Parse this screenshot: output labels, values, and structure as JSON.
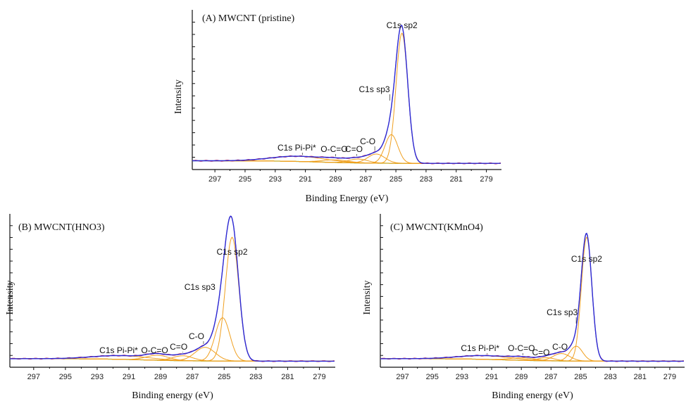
{
  "colors": {
    "envelope": "#2b2bd6",
    "raw": "#cc2244",
    "component": "#f0a020",
    "background": "#22cc22",
    "axis": "#111111"
  },
  "chart_data": [
    {
      "type": "line",
      "title": "(A) MWCNT (pristine)",
      "xlabel": "Binding Energy (eV)",
      "ylabel": "Intensity",
      "xlim": [
        298.5,
        278
      ],
      "x_reversed": true,
      "x_ticks": [
        297,
        295,
        293,
        291,
        289,
        287,
        285,
        283,
        281,
        279
      ],
      "peak_labels": [
        {
          "text": "C1s sp2",
          "x": 284.6
        },
        {
          "text": "C1s sp3",
          "x": 285.4
        },
        {
          "text": "C-O",
          "x": 286.4
        },
        {
          "text": "C=O",
          "x": 287.6
        },
        {
          "text": "O-C=O",
          "x": 289.0
        },
        {
          "text": "C1s Pi-Pi*",
          "x": 291.2
        }
      ],
      "series": [
        {
          "role": "envelope",
          "components": [
            {
              "c": 284.6,
              "w": 0.55,
              "h": 1.0
            },
            {
              "c": 285.3,
              "w": 0.6,
              "h": 0.22
            },
            {
              "c": 286.3,
              "w": 0.8,
              "h": 0.07
            },
            {
              "c": 287.5,
              "w": 0.9,
              "h": 0.03
            },
            {
              "c": 289.0,
              "w": 1.2,
              "h": 0.02
            },
            {
              "c": 291.5,
              "w": 2.5,
              "h": 0.04
            }
          ]
        }
      ]
    },
    {
      "type": "line",
      "title": "(B) MWCNT(HNO3)",
      "xlabel": "Binding energy (eV)",
      "ylabel": "Intensity",
      "xlim": [
        298.5,
        278
      ],
      "x_reversed": true,
      "x_ticks": [
        297,
        295,
        293,
        291,
        289,
        287,
        285,
        283,
        281,
        279
      ],
      "peak_labels": [
        {
          "text": "C1s sp2",
          "x": 284.5
        },
        {
          "text": "C1s sp3",
          "x": 285.2
        },
        {
          "text": "C-O",
          "x": 286.3
        },
        {
          "text": "C=O",
          "x": 287.6
        },
        {
          "text": "O-C=O",
          "x": 289.2
        },
        {
          "text": "C1s Pi-Pi*",
          "x": 291.2
        }
      ],
      "series": [
        {
          "role": "envelope",
          "components": [
            {
              "c": 284.5,
              "w": 0.6,
              "h": 1.0
            },
            {
              "c": 285.1,
              "w": 0.65,
              "h": 0.35
            },
            {
              "c": 286.2,
              "w": 0.9,
              "h": 0.11
            },
            {
              "c": 287.6,
              "w": 0.9,
              "h": 0.04
            },
            {
              "c": 289.2,
              "w": 1.0,
              "h": 0.04
            },
            {
              "c": 291.5,
              "w": 2.5,
              "h": 0.03
            }
          ]
        }
      ]
    },
    {
      "type": "line",
      "title": "(C) MWCNT(KMnO4)",
      "xlabel": "Binding energy (eV)",
      "ylabel": "Intensity",
      "xlim": [
        298.5,
        278
      ],
      "x_reversed": true,
      "x_ticks": [
        297,
        295,
        293,
        291,
        289,
        287,
        285,
        283,
        281,
        279
      ],
      "peak_labels": [
        {
          "text": "C1s sp2",
          "x": 284.6
        },
        {
          "text": "C1s sp3",
          "x": 285.3
        },
        {
          "text": "C-O",
          "x": 286.3
        },
        {
          "text": "C=O",
          "x": 287.3
        },
        {
          "text": "O-C=O",
          "x": 288.9
        },
        {
          "text": "C1s Pi-Pi*",
          "x": 291.3
        }
      ],
      "series": [
        {
          "role": "envelope",
          "components": [
            {
              "c": 284.6,
              "w": 0.5,
              "h": 1.0
            },
            {
              "c": 285.3,
              "w": 0.6,
              "h": 0.12
            },
            {
              "c": 286.3,
              "w": 0.8,
              "h": 0.06
            },
            {
              "c": 287.3,
              "w": 0.8,
              "h": 0.025
            },
            {
              "c": 288.9,
              "w": 1.2,
              "h": 0.02
            },
            {
              "c": 291.5,
              "w": 2.5,
              "h": 0.03
            }
          ]
        }
      ]
    }
  ]
}
